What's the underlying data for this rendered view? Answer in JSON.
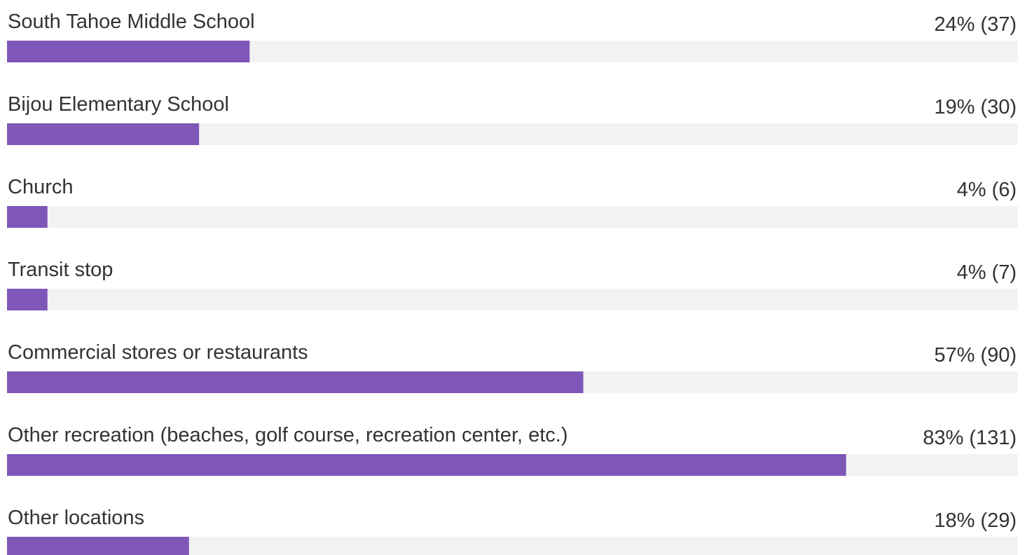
{
  "chart_data": {
    "type": "bar",
    "orientation": "horizontal",
    "categories": [
      "South Tahoe Middle School",
      "Bijou Elementary School",
      "Church",
      "Transit stop",
      "Commercial stores or restaurants",
      "Other recreation (beaches, golf course, recreation center, etc.)",
      "Other locations"
    ],
    "values": [
      24,
      19,
      4,
      4,
      57,
      83,
      18
    ],
    "value_labels": [
      "24% (37)",
      "19% (30)",
      "4% (6)",
      "4% (7)",
      "57% (90)",
      "83% (131)",
      "18% (29)"
    ],
    "xlim": [
      0,
      100
    ],
    "color": "#7e57b8",
    "track_color": "#f2f2f2"
  }
}
